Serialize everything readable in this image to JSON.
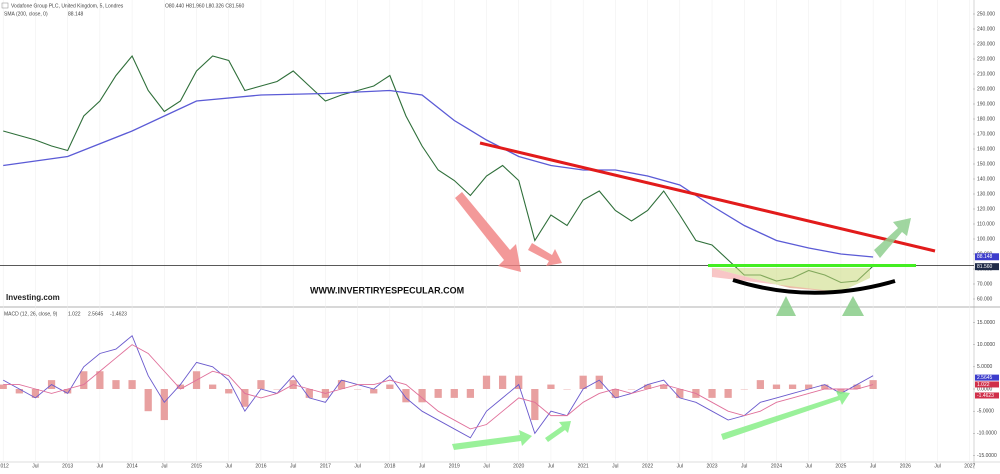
{
  "chart_data": [
    {
      "type": "line",
      "title": "Vodafone Group PLC, United Kingdom, 5, Londres",
      "ohlc": "O80.440 H81.960 L80.326 C81.560",
      "watermark": "WWW.INVERTIRYESPECULAR.COM",
      "logo": "Investing.com",
      "xlim": [
        2011.95,
        2027.05
      ],
      "ylim": [
        56,
        258
      ],
      "yticks": [
        {
          "value": 60,
          "label": "60.000"
        },
        {
          "value": 70,
          "label": "70.000"
        },
        {
          "value": 80,
          "label": "80.000"
        },
        {
          "value": 90,
          "label": "90.000"
        },
        {
          "value": 100,
          "label": "100.000"
        },
        {
          "value": 110,
          "label": "110.000"
        },
        {
          "value": 120,
          "label": "120.000"
        },
        {
          "value": 130,
          "label": "130.000"
        },
        {
          "value": 140,
          "label": "140.000"
        },
        {
          "value": 150,
          "label": "150.000"
        },
        {
          "value": 160,
          "label": "160.000"
        },
        {
          "value": 170,
          "label": "170.000"
        },
        {
          "value": 180,
          "label": "180.000"
        },
        {
          "value": 190,
          "label": "190.000"
        },
        {
          "value": 200,
          "label": "200.000"
        },
        {
          "value": 210,
          "label": "210.000"
        },
        {
          "value": 220,
          "label": "220.000"
        },
        {
          "value": 230,
          "label": "230.000"
        },
        {
          "value": 240,
          "label": "240.000"
        },
        {
          "value": 250,
          "label": "250.000"
        }
      ],
      "series": [
        {
          "color": "#2f6f3a",
          "x": [
            2012,
            2012.25,
            2012.5,
            2012.75,
            2013,
            2013.25,
            2013.5,
            2013.75,
            2014,
            2014.25,
            2014.5,
            2014.75,
            2015,
            2015.25,
            2015.5,
            2015.75,
            2016,
            2016.25,
            2016.5,
            2016.75,
            2017,
            2017.25,
            2017.5,
            2017.75,
            2018,
            2018.25,
            2018.5,
            2018.75,
            2019,
            2019.25,
            2019.5,
            2019.75,
            2020,
            2020.25,
            2020.5,
            2020.75,
            2021,
            2021.25,
            2021.5,
            2021.75,
            2022,
            2022.25,
            2022.5,
            2022.75,
            2023,
            2023.25,
            2023.5,
            2023.75,
            2024,
            2024.25,
            2024.5,
            2024.75,
            2025,
            2025.25,
            2025.5
          ],
          "values": [
            172,
            169,
            166,
            162,
            159,
            182,
            192,
            209,
            222,
            199,
            185,
            192,
            212,
            222,
            219,
            199,
            202,
            205,
            212,
            202,
            192,
            196,
            199,
            202,
            209,
            182,
            162,
            146,
            139,
            129,
            142,
            149,
            139,
            99,
            116,
            109,
            126,
            132,
            119,
            112,
            119,
            132,
            116,
            99,
            96,
            86,
            76,
            76,
            72,
            74,
            79,
            76,
            71,
            72,
            82
          ]
        },
        {
          "name": "SMA (200, close, 0)",
          "color": "#5b5bd6",
          "x": [
            2012,
            2013,
            2014,
            2014.5,
            2015,
            2016,
            2017,
            2018,
            2018.5,
            2019,
            2019.5,
            2020,
            2020.5,
            2021,
            2021.5,
            2022,
            2022.5,
            2023,
            2023.5,
            2024,
            2024.5,
            2025,
            2025.5
          ],
          "values": [
            149,
            155,
            172,
            182,
            192,
            196,
            197,
            199,
            196,
            179,
            166,
            155,
            149,
            146,
            146,
            142,
            136,
            122,
            109,
            99,
            94,
            90,
            88
          ]
        }
      ],
      "legend_value": "88.148",
      "price_badges": [
        {
          "value": 88.148,
          "label": "88.148",
          "color": "#3d3dcc"
        },
        {
          "value": 81.56,
          "label": "81.560",
          "color": "#1e2a48"
        }
      ]
    },
    {
      "type": "macd",
      "title": "MACD (12, 26, close, 9)",
      "readouts": [
        "1.022",
        "2.5645",
        "-1.4623"
      ],
      "xlim": [
        2011.95,
        2027.05
      ],
      "xticks": [
        {
          "value": 2012,
          "label": "2012"
        },
        {
          "value": 2012.5,
          "label": "Jul"
        },
        {
          "value": 2013,
          "label": "2013"
        },
        {
          "value": 2013.5,
          "label": "Jul"
        },
        {
          "value": 2014,
          "label": "2014"
        },
        {
          "value": 2014.5,
          "label": "Jul"
        },
        {
          "value": 2015,
          "label": "2015"
        },
        {
          "value": 2015.5,
          "label": "Jul"
        },
        {
          "value": 2016,
          "label": "2016"
        },
        {
          "value": 2016.5,
          "label": "Jul"
        },
        {
          "value": 2017,
          "label": "2017"
        },
        {
          "value": 2017.5,
          "label": "Jul"
        },
        {
          "value": 2018,
          "label": "2018"
        },
        {
          "value": 2018.5,
          "label": "Jul"
        },
        {
          "value": 2019,
          "label": "2019"
        },
        {
          "value": 2019.5,
          "label": "Jul"
        },
        {
          "value": 2020,
          "label": "2020"
        },
        {
          "value": 2020.5,
          "label": "Jul"
        },
        {
          "value": 2021,
          "label": "2021"
        },
        {
          "value": 2021.5,
          "label": "Jul"
        },
        {
          "value": 2022,
          "label": "2022"
        },
        {
          "value": 2022.5,
          "label": "Jul"
        },
        {
          "value": 2023,
          "label": "2023"
        },
        {
          "value": 2023.5,
          "label": "Jul"
        },
        {
          "value": 2024,
          "label": "2024"
        },
        {
          "value": 2024.5,
          "label": "Jul"
        },
        {
          "value": 2025,
          "label": "2025"
        },
        {
          "value": 2025.5,
          "label": "Jul"
        },
        {
          "value": 2026,
          "label": "2026"
        },
        {
          "value": 2026.5,
          "label": "Jul"
        },
        {
          "value": 2027,
          "label": "2027"
        }
      ],
      "ylim": [
        -16,
        16
      ],
      "yticks": [
        {
          "value": -15,
          "label": "-15.0000"
        },
        {
          "value": -10,
          "label": "-10.0000"
        },
        {
          "value": -5,
          "label": "-5.0000"
        },
        {
          "value": 0,
          "label": "0.0000"
        },
        {
          "value": 5,
          "label": "5.0000"
        },
        {
          "value": 10,
          "label": "10.0000"
        },
        {
          "value": 15,
          "label": "15.0000"
        }
      ],
      "x": [
        2012,
        2012.25,
        2012.5,
        2012.75,
        2013,
        2013.25,
        2013.5,
        2013.75,
        2014,
        2014.25,
        2014.5,
        2014.75,
        2015,
        2015.25,
        2015.5,
        2015.75,
        2016,
        2016.25,
        2016.5,
        2016.75,
        2017,
        2017.25,
        2017.5,
        2017.75,
        2018,
        2018.25,
        2018.5,
        2018.75,
        2019,
        2019.25,
        2019.5,
        2019.75,
        2020,
        2020.25,
        2020.5,
        2020.75,
        2021,
        2021.25,
        2021.5,
        2021.75,
        2022,
        2022.25,
        2022.5,
        2022.75,
        2023,
        2023.25,
        2023.5,
        2023.75,
        2024,
        2024.25,
        2024.5,
        2024.75,
        2025,
        2025.25,
        2025.5
      ],
      "series": [
        {
          "color": "#6a5acd",
          "values": [
            2,
            0,
            -2,
            1,
            -1,
            5,
            8,
            9,
            12,
            3,
            -3,
            1,
            6,
            5,
            2,
            -5,
            0,
            -1,
            3,
            -2,
            -3,
            2,
            1,
            0,
            3,
            -2,
            -5,
            -7,
            -9,
            -11,
            -5,
            -2,
            1,
            -10,
            -5,
            -6,
            0,
            2,
            -2,
            -1,
            1,
            2,
            -2,
            -3,
            -5,
            -7,
            -6,
            -3,
            -2,
            -1,
            0,
            1,
            -1,
            1,
            3
          ]
        },
        {
          "color": "#e0709a",
          "values": [
            1,
            1,
            0,
            -1,
            0,
            1,
            4,
            7,
            10,
            8,
            4,
            0,
            2,
            4,
            3,
            -1,
            -2,
            -1,
            1,
            0,
            -1,
            0,
            1,
            1,
            2,
            1,
            -2,
            -5,
            -7,
            -9,
            -8,
            -5,
            -2,
            -3,
            -6,
            -6,
            -3,
            -1,
            0,
            -1,
            0,
            1,
            0,
            -1,
            -3,
            -5,
            -6,
            -5,
            -3,
            -2,
            -1,
            0,
            0,
            0,
            1
          ]
        },
        {
          "color": "#e8a0a0",
          "values": [
            1,
            -1,
            -2,
            2,
            -1,
            4,
            4,
            2,
            2,
            -5,
            -7,
            1,
            4,
            1,
            -1,
            -4,
            2,
            0,
            2,
            -2,
            -2,
            2,
            0,
            -1,
            1,
            -3,
            -3,
            -2,
            -2,
            -2,
            3,
            3,
            3,
            -7,
            1,
            0,
            3,
            3,
            -2,
            0,
            1,
            1,
            -2,
            -2,
            -2,
            -2,
            0,
            2,
            1,
            1,
            1,
            1,
            -1,
            1,
            2
          ]
        }
      ],
      "badges": [
        {
          "value": 2.5645,
          "label": "2.5645",
          "color": "#3d3dcc"
        },
        {
          "value": 1.022,
          "label": "1.022",
          "color": "#d0304a"
        },
        {
          "value": -1.4623,
          "label": "-1.4623",
          "color": "#d0304a"
        }
      ]
    }
  ]
}
